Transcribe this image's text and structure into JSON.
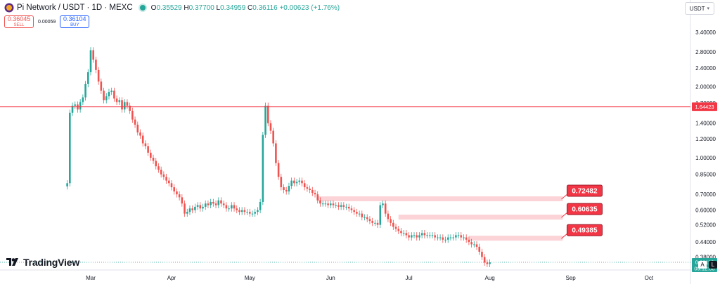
{
  "header": {
    "title": "Pi Network / USDT · 1D · MEXC",
    "ohlc": [
      {
        "key": "O",
        "value": "0.35529"
      },
      {
        "key": "H",
        "value": "0.37700"
      },
      {
        "key": "L",
        "value": "0.34959"
      },
      {
        "key": "C",
        "value": "0.36116"
      }
    ],
    "change": "+0.00623 (+1.76%)",
    "icon": "pi-network-logo-icon",
    "status_color": "#26a69a"
  },
  "trade": {
    "sell_price": "0.36045",
    "sell_label": "SELL",
    "spread": "0.00059",
    "buy_price": "0.36104",
    "buy_label": "BUY"
  },
  "currency_selector": {
    "value": "USDT"
  },
  "brand": {
    "name": "TradingView"
  },
  "price_axis": {
    "ticks": [
      "3.40000",
      "2.80000",
      "2.40000",
      "2.00000",
      "1.70000",
      "1.40000",
      "1.20000",
      "1.00000",
      "0.85000",
      "0.70000",
      "0.60000",
      "0.52000",
      "0.44000",
      "0.38000"
    ],
    "tick_values": [
      3.4,
      2.8,
      2.4,
      2.0,
      1.7,
      1.4,
      1.2,
      1.0,
      0.85,
      0.7,
      0.6,
      0.52,
      0.44,
      0.38
    ],
    "scale": "log"
  },
  "corner_buttons": {
    "a": "A",
    "l": "L"
  },
  "chart_data": {
    "type": "candlestick",
    "title": "",
    "x_ticks": [
      "Mar",
      "Apr",
      "May",
      "Jun",
      "Jul",
      "Aug",
      "Sep",
      "Oct"
    ],
    "x_tick_dates": [
      "2025-03-01",
      "2025-04-01",
      "2025-05-01",
      "2025-06-01",
      "2025-07-01",
      "2025-08-01",
      "2025-09-01",
      "2025-10-01"
    ],
    "y_scale": "log",
    "ylim": [
      0.335,
      4.0
    ],
    "colors": {
      "up": "#26a69a",
      "down": "#ef5350"
    },
    "last_price": {
      "value": 0.36116,
      "label": "0.36116",
      "countdown": "09:12:00",
      "color": "#26a69a"
    },
    "horizontal_line": {
      "value": 1.64423,
      "label": "1.64423",
      "color": "#f23645"
    },
    "zones": [
      {
        "label": "0.72482",
        "value": 0.72482,
        "from": "2025-05-27",
        "to": "2025-08-29",
        "color": "#f23645"
      },
      {
        "label": "0.60635",
        "value": 0.60635,
        "from": "2025-06-27",
        "to": "2025-08-29",
        "color": "#f23645"
      },
      {
        "label": "0.49385",
        "value": 0.49385,
        "from": "2025-07-24",
        "to": "2025-08-29",
        "color": "#f23645"
      }
    ],
    "approx_closes": {
      "start_date": "2025-02-20",
      "values": [
        0.78,
        1.55,
        1.66,
        1.68,
        1.6,
        1.72,
        1.8,
        2.05,
        2.3,
        2.85,
        2.6,
        2.35,
        2.1,
        1.92,
        1.75,
        1.82,
        1.9,
        1.92,
        1.78,
        1.72,
        1.75,
        1.6,
        1.72,
        1.66,
        1.58,
        1.45,
        1.38,
        1.28,
        1.24,
        1.15,
        1.12,
        1.05,
        1.0,
        0.97,
        0.92,
        0.89,
        0.85,
        0.83,
        0.8,
        0.78,
        0.75,
        0.72,
        0.7,
        0.68,
        0.64,
        0.58,
        0.59,
        0.61,
        0.6,
        0.62,
        0.63,
        0.61,
        0.62,
        0.64,
        0.63,
        0.65,
        0.64,
        0.63,
        0.66,
        0.64,
        0.63,
        0.61,
        0.61,
        0.63,
        0.61,
        0.6,
        0.59,
        0.6,
        0.59,
        0.59,
        0.58,
        0.58,
        0.59,
        0.6,
        0.65,
        1.25,
        1.66,
        1.4,
        1.3,
        1.15,
        0.95,
        0.83,
        0.75,
        0.73,
        0.72,
        0.76,
        0.8,
        0.78,
        0.79,
        0.8,
        0.78,
        0.75,
        0.74,
        0.73,
        0.71,
        0.7,
        0.66,
        0.64,
        0.64,
        0.64,
        0.63,
        0.64,
        0.63,
        0.63,
        0.62,
        0.63,
        0.62,
        0.62,
        0.61,
        0.6,
        0.59,
        0.58,
        0.58,
        0.56,
        0.56,
        0.55,
        0.54,
        0.53,
        0.53,
        0.52,
        0.63,
        0.64,
        0.58,
        0.55,
        0.53,
        0.51,
        0.5,
        0.49,
        0.48,
        0.48,
        0.47,
        0.46,
        0.47,
        0.47,
        0.46,
        0.47,
        0.48,
        0.47,
        0.47,
        0.47,
        0.47,
        0.46,
        0.46,
        0.46,
        0.45,
        0.45,
        0.46,
        0.46,
        0.46,
        0.47,
        0.47,
        0.46,
        0.46,
        0.45,
        0.44,
        0.43,
        0.43,
        0.42,
        0.4,
        0.38,
        0.36,
        0.355,
        0.361
      ]
    }
  }
}
